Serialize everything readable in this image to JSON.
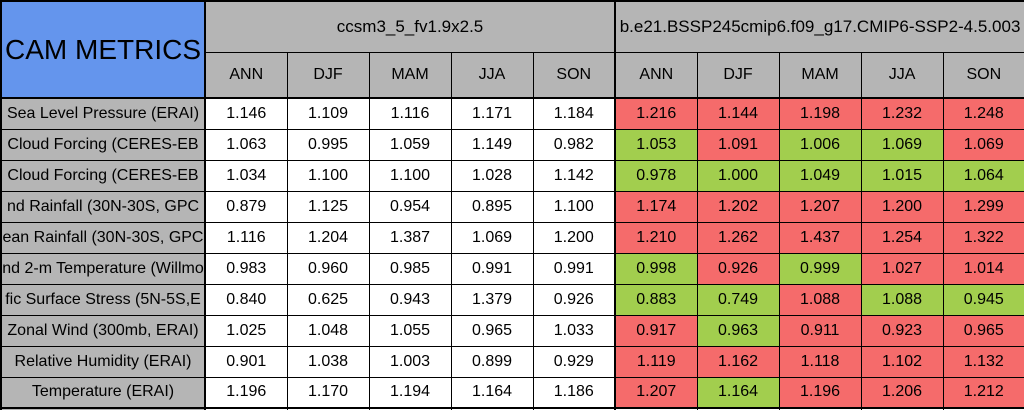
{
  "title": "CAM METRICS",
  "colors": {
    "header_blue": "#6495ed",
    "header_gray": "#b5b5b5",
    "cell_red": "#f56b6b",
    "cell_green": "#a2ce4e",
    "cell_white": "#ffffff",
    "border": "#000000"
  },
  "chart_data": {
    "type": "table",
    "title": "CAM METRICS",
    "groups": [
      {
        "name": "ccsm3_5_fv1.9x2.5",
        "columns": [
          "ANN",
          "DJF",
          "MAM",
          "JJA",
          "SON"
        ]
      },
      {
        "name": "b.e21.BSSP245cmip6.f09_g17.CMIP6-SSP2-4.5.003",
        "columns": [
          "ANN",
          "DJF",
          "MAM",
          "JJA",
          "SON"
        ]
      }
    ],
    "rows": [
      {
        "label": "Sea Level Pressure (ERAI)",
        "model1_values": [
          "1.146",
          "1.109",
          "1.116",
          "1.171",
          "1.184"
        ],
        "model2_values": [
          "1.216",
          "1.144",
          "1.198",
          "1.232",
          "1.248"
        ],
        "model2_colors": [
          "red",
          "red",
          "red",
          "red",
          "red"
        ]
      },
      {
        "label": "Cloud Forcing (CERES-EB",
        "model1_values": [
          "1.063",
          "0.995",
          "1.059",
          "1.149",
          "0.982"
        ],
        "model2_values": [
          "1.053",
          "1.091",
          "1.006",
          "1.069",
          "1.069"
        ],
        "model2_colors": [
          "green",
          "red",
          "green",
          "green",
          "red"
        ]
      },
      {
        "label": "Cloud Forcing (CERES-EB",
        "model1_values": [
          "1.034",
          "1.100",
          "1.100",
          "1.028",
          "1.142"
        ],
        "model2_values": [
          "0.978",
          "1.000",
          "1.049",
          "1.015",
          "1.064"
        ],
        "model2_colors": [
          "green",
          "green",
          "green",
          "green",
          "green"
        ]
      },
      {
        "label": "nd Rainfall (30N-30S, GPC",
        "model1_values": [
          "0.879",
          "1.125",
          "0.954",
          "0.895",
          "1.100"
        ],
        "model2_values": [
          "1.174",
          "1.202",
          "1.207",
          "1.200",
          "1.299"
        ],
        "model2_colors": [
          "red",
          "red",
          "red",
          "red",
          "red"
        ]
      },
      {
        "label": "ean Rainfall (30N-30S, GPC",
        "model1_values": [
          "1.116",
          "1.204",
          "1.387",
          "1.069",
          "1.200"
        ],
        "model2_values": [
          "1.210",
          "1.262",
          "1.437",
          "1.254",
          "1.322"
        ],
        "model2_colors": [
          "red",
          "red",
          "red",
          "red",
          "red"
        ]
      },
      {
        "label": "nd 2-m Temperature (Willmo",
        "model1_values": [
          "0.983",
          "0.960",
          "0.985",
          "0.991",
          "0.991"
        ],
        "model2_values": [
          "0.998",
          "0.926",
          "0.999",
          "1.027",
          "1.014"
        ],
        "model2_colors": [
          "green",
          "red",
          "green",
          "red",
          "red"
        ]
      },
      {
        "label": "fic Surface Stress (5N-5S,E",
        "model1_values": [
          "0.840",
          "0.625",
          "0.943",
          "1.379",
          "0.926"
        ],
        "model2_values": [
          "0.883",
          "0.749",
          "1.088",
          "1.088",
          "0.945"
        ],
        "model2_colors": [
          "green",
          "green",
          "red",
          "green",
          "green"
        ]
      },
      {
        "label": "Zonal Wind (300mb, ERAI)",
        "model1_values": [
          "1.025",
          "1.048",
          "1.055",
          "0.965",
          "1.033"
        ],
        "model2_values": [
          "0.917",
          "0.963",
          "0.911",
          "0.923",
          "0.965"
        ],
        "model2_colors": [
          "red",
          "green",
          "red",
          "red",
          "red"
        ]
      },
      {
        "label": "Relative Humidity (ERAI)",
        "model1_values": [
          "0.901",
          "1.038",
          "1.003",
          "0.899",
          "0.929"
        ],
        "model2_values": [
          "1.119",
          "1.162",
          "1.118",
          "1.102",
          "1.132"
        ],
        "model2_colors": [
          "red",
          "red",
          "red",
          "red",
          "red"
        ]
      },
      {
        "label": "Temperature (ERAI)",
        "model1_values": [
          "1.196",
          "1.170",
          "1.194",
          "1.164",
          "1.186"
        ],
        "model2_values": [
          "1.207",
          "1.164",
          "1.196",
          "1.206",
          "1.212"
        ],
        "model2_colors": [
          "red",
          "green",
          "red",
          "red",
          "red"
        ]
      }
    ]
  }
}
